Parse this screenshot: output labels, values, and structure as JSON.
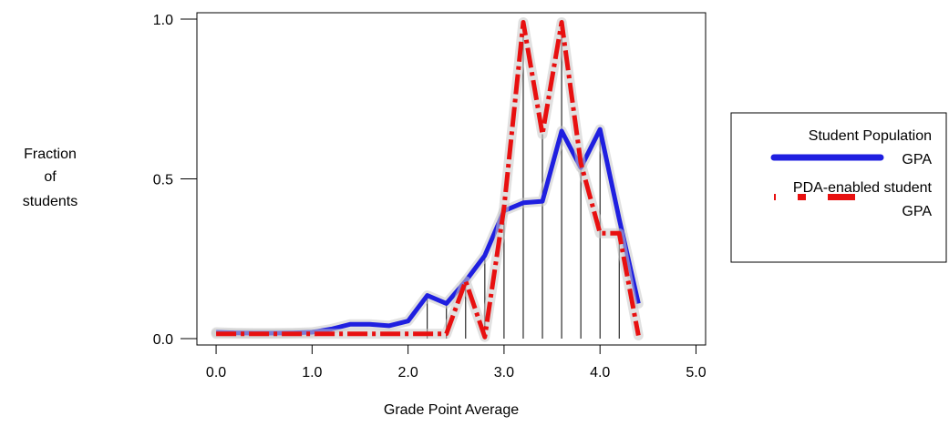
{
  "chart_data": {
    "type": "line",
    "xlabel": "Grade Point Average",
    "ylabel_lines": [
      "Fraction",
      "of",
      "students"
    ],
    "xlim": [
      -0.2,
      5.1
    ],
    "ylim": [
      -0.02,
      1.02
    ],
    "x_ticks": [
      0.0,
      1.0,
      2.0,
      3.0,
      4.0,
      5.0
    ],
    "x_tick_labels": [
      "0.0",
      "1.0",
      "2.0",
      "3.0",
      "4.0",
      "5.0"
    ],
    "y_ticks": [
      0.0,
      0.5,
      1.0
    ],
    "y_tick_labels": [
      "0.0",
      "0.5",
      "1.0"
    ],
    "grid": false,
    "legend_position": "right",
    "droplines_x": [
      2.2,
      2.4,
      2.6,
      2.8,
      3.0,
      3.2,
      3.4,
      3.6,
      3.8,
      4.0,
      4.2
    ],
    "series": [
      {
        "name_lines": [
          "Student Population",
          "GPA"
        ],
        "color": "#1f1fe0",
        "style": "solid",
        "x": [
          0.0,
          0.2,
          0.4,
          0.6,
          0.8,
          1.0,
          1.2,
          1.4,
          1.6,
          1.8,
          2.0,
          2.2,
          2.4,
          2.6,
          2.8,
          3.0,
          3.2,
          3.4,
          3.6,
          3.8,
          4.0,
          4.2,
          4.4
        ],
        "y": [
          0.02,
          0.018,
          0.017,
          0.017,
          0.018,
          0.02,
          0.03,
          0.045,
          0.045,
          0.04,
          0.055,
          0.135,
          0.11,
          0.18,
          0.26,
          0.4,
          0.425,
          0.43,
          0.65,
          0.535,
          0.655,
          0.375,
          0.11
        ]
      },
      {
        "name_lines": [
          "PDA-enabled student",
          "GPA"
        ],
        "color": "#e81010",
        "style": "dash-dot",
        "x": [
          0.0,
          0.2,
          0.4,
          0.6,
          0.8,
          1.0,
          1.2,
          1.4,
          1.6,
          1.8,
          2.0,
          2.2,
          2.4,
          2.6,
          2.8,
          3.0,
          3.2,
          3.4,
          3.6,
          3.8,
          4.0,
          4.2,
          4.4
        ],
        "y": [
          0.015,
          0.015,
          0.015,
          0.015,
          0.015,
          0.015,
          0.015,
          0.015,
          0.015,
          0.015,
          0.015,
          0.015,
          0.015,
          0.18,
          0.005,
          0.41,
          0.99,
          0.64,
          0.99,
          0.55,
          0.33,
          0.33,
          0.01
        ]
      }
    ]
  }
}
